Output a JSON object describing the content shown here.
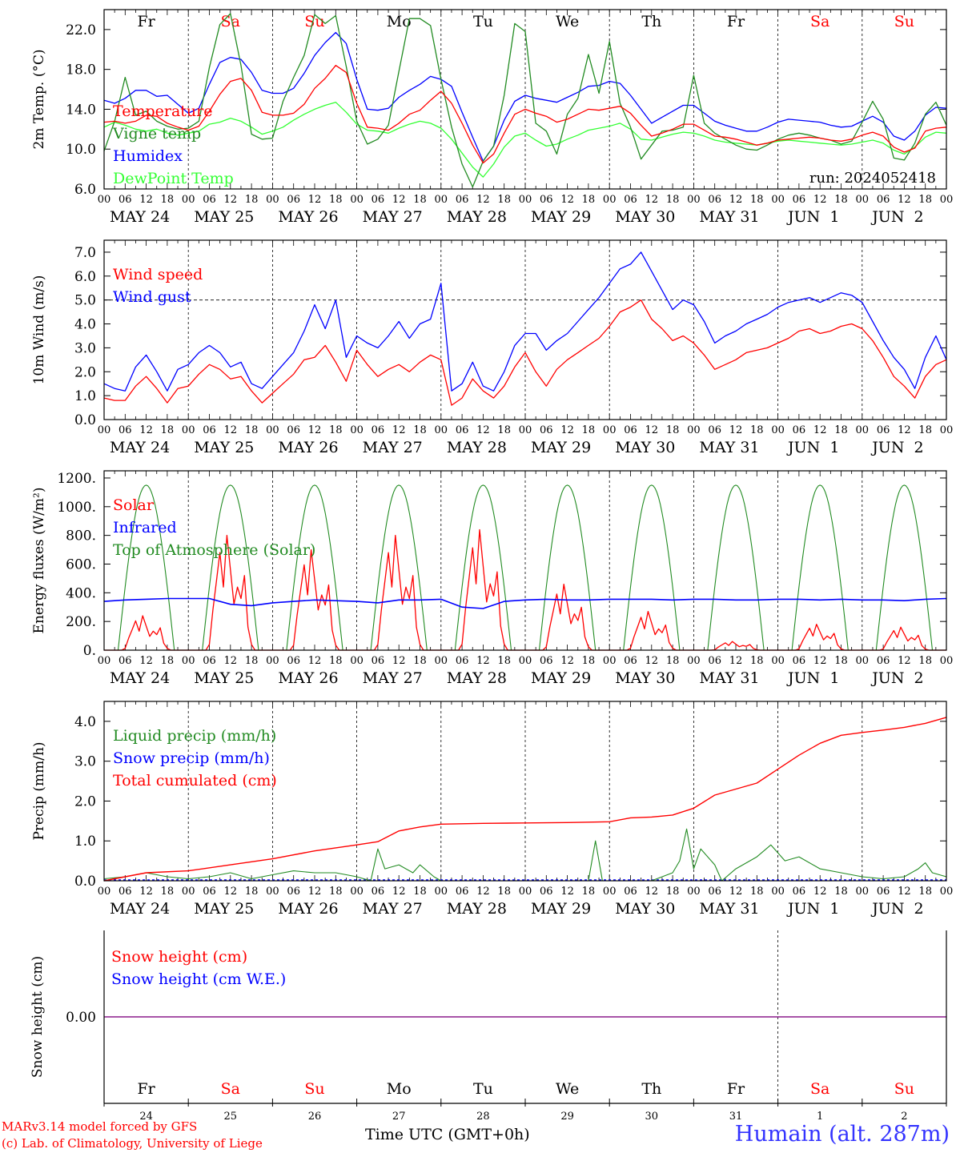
{
  "footer": {
    "credit_line1": "MARv3.14 model forced by GFS",
    "credit_line2": "(c) Lab. of Climatology, University of Liege",
    "time_label": "Time UTC (GMT+0h)",
    "station": "Humain (alt. 287m)"
  },
  "weekdays": [
    {
      "label": "Fr",
      "color": "#000000"
    },
    {
      "label": "Sa",
      "color": "#ff0000"
    },
    {
      "label": "Su",
      "color": "#ff0000"
    },
    {
      "label": "Mo",
      "color": "#000000"
    },
    {
      "label": "Tu",
      "color": "#000000"
    },
    {
      "label": "We",
      "color": "#000000"
    },
    {
      "label": "Th",
      "color": "#000000"
    },
    {
      "label": "Fr",
      "color": "#000000"
    },
    {
      "label": "Sa",
      "color": "#ff0000"
    },
    {
      "label": "Su",
      "color": "#ff0000"
    }
  ],
  "dates": [
    "MAY 24",
    "MAY 25",
    "MAY 26",
    "MAY 27",
    "MAY 28",
    "MAY 29",
    "MAY 30",
    "MAY 31",
    "JUN  1",
    "JUN  2"
  ],
  "day_numbers": [
    "24",
    "25",
    "26",
    "27",
    "28",
    "29",
    "30",
    "31",
    "1",
    "2"
  ],
  "hour_labels": [
    "00",
    "06",
    "12",
    "18"
  ],
  "chart_data": [
    {
      "id": "temp",
      "type": "line",
      "ylabel": "2m Temp. (°C)",
      "ylim": [
        6,
        24
      ],
      "yticks": [
        6.0,
        10.0,
        14.0,
        18.0,
        22.0
      ],
      "yticklabels": [
        "6.0",
        "10.0",
        "14.0",
        "18.0",
        "22.0"
      ],
      "annotation": "run: 2024052418",
      "x_hours": [
        0,
        3,
        6,
        9,
        12,
        15,
        18,
        21,
        24,
        27,
        30,
        33,
        36,
        39,
        42,
        45,
        48,
        51,
        54,
        57,
        60,
        63,
        66,
        69,
        72,
        75,
        78,
        81,
        84,
        87,
        90,
        93,
        96,
        99,
        102,
        105,
        108,
        111,
        114,
        117,
        120,
        123,
        126,
        129,
        132,
        135,
        138,
        141,
        144,
        147,
        150,
        153,
        156,
        159,
        162,
        165,
        168,
        171,
        174,
        177,
        180,
        183,
        186,
        189,
        192,
        195,
        198,
        201,
        204,
        207,
        210,
        213,
        216,
        219,
        222,
        225,
        228,
        231,
        234,
        237,
        240
      ],
      "series": [
        {
          "name": "Temperature",
          "color": "#ff0000",
          "values": [
            12.7,
            12.8,
            12.6,
            12.8,
            13.4,
            13.3,
            12.6,
            12.2,
            11.9,
            12.3,
            13.8,
            15.5,
            16.8,
            17.1,
            15.9,
            13.7,
            13.4,
            13.4,
            13.6,
            14.5,
            16.1,
            17.1,
            18.4,
            17.7,
            14.6,
            12.2,
            12.1,
            11.9,
            12.6,
            13.5,
            13.9,
            14.9,
            15.8,
            14.6,
            12.6,
            10.4,
            8.6,
            9.5,
            11.6,
            13.5,
            14.0,
            13.6,
            13.3,
            12.7,
            13.0,
            13.5,
            14.0,
            13.9,
            14.1,
            14.3,
            13.6,
            12.4,
            11.3,
            11.6,
            12.0,
            12.5,
            12.5,
            11.9,
            11.3,
            11.2,
            11.0,
            10.7,
            10.4,
            10.6,
            10.9,
            11.0,
            11.1,
            11.2,
            11.1,
            10.9,
            10.8,
            11.0,
            11.4,
            11.7,
            11.3,
            10.2,
            9.7,
            10.1,
            11.8,
            12.1,
            12.2
          ]
        },
        {
          "name": "Vigne temp",
          "color": "#228b22",
          "values": [
            9.8,
            12.8,
            17.2,
            13.4,
            13.8,
            12.8,
            12.3,
            12.0,
            12.1,
            12.8,
            18.2,
            22.5,
            23.6,
            18.4,
            11.5,
            11.0,
            11.1,
            14.8,
            17.2,
            19.4,
            23.5,
            22.6,
            23.4,
            18.3,
            12.8,
            10.5,
            11.0,
            12.4,
            17.8,
            23.1,
            23.1,
            22.4,
            17.0,
            12.2,
            8.5,
            6.2,
            8.8,
            10.3,
            15.4,
            22.6,
            21.8,
            12.6,
            11.8,
            9.5,
            13.5,
            15.1,
            19.5,
            15.6,
            20.8,
            14.6,
            12.2,
            9.0,
            10.4,
            11.8,
            11.9,
            12.2,
            17.4,
            12.6,
            11.6,
            11.0,
            10.4,
            10.0,
            9.9,
            10.4,
            11.0,
            11.4,
            11.6,
            11.4,
            11.1,
            10.9,
            10.5,
            10.8,
            12.7,
            14.8,
            13.0,
            9.1,
            8.9,
            10.6,
            13.5,
            14.7,
            12.4
          ]
        },
        {
          "name": "Humidex",
          "color": "#0000ff",
          "values": [
            14.9,
            14.6,
            15.1,
            15.9,
            15.9,
            15.3,
            15.4,
            14.5,
            13.6,
            14.1,
            16.5,
            18.7,
            19.2,
            19.0,
            17.7,
            15.9,
            15.6,
            15.6,
            16.1,
            17.6,
            19.4,
            20.7,
            21.7,
            20.6,
            17.0,
            14.0,
            13.9,
            14.1,
            15.2,
            15.9,
            16.5,
            17.3,
            17.0,
            16.3,
            13.7,
            11.2,
            8.8,
            10.3,
            12.9,
            14.8,
            15.4,
            15.1,
            14.9,
            14.7,
            15.2,
            15.7,
            16.3,
            16.4,
            16.8,
            16.6,
            15.4,
            14.0,
            12.6,
            13.2,
            13.8,
            14.4,
            14.4,
            13.6,
            12.8,
            12.4,
            12.1,
            11.8,
            11.8,
            12.2,
            12.7,
            13.0,
            12.9,
            12.8,
            12.7,
            12.4,
            12.2,
            12.3,
            12.8,
            13.3,
            12.7,
            11.3,
            10.9,
            11.8,
            13.4,
            14.2,
            14.1
          ]
        },
        {
          "name": "DewPoint Temp",
          "color": "#33ff33",
          "values": [
            12.2,
            12.7,
            12.4,
            12.0,
            11.8,
            12.0,
            11.6,
            11.4,
            11.6,
            11.8,
            12.5,
            12.7,
            13.1,
            12.8,
            12.2,
            11.5,
            11.8,
            12.2,
            12.9,
            13.5,
            14.0,
            14.4,
            14.7,
            13.7,
            12.5,
            11.9,
            11.8,
            11.6,
            12.1,
            12.5,
            12.8,
            12.6,
            12.1,
            11.0,
            9.6,
            8.2,
            7.2,
            8.5,
            10.2,
            11.3,
            11.6,
            10.9,
            10.3,
            10.5,
            11.0,
            11.4,
            11.9,
            12.1,
            12.3,
            12.6,
            12.0,
            11.0,
            10.9,
            11.2,
            11.5,
            11.7,
            11.6,
            11.3,
            10.9,
            10.7,
            10.6,
            10.5,
            10.4,
            10.6,
            10.8,
            10.9,
            10.8,
            10.7,
            10.6,
            10.5,
            10.4,
            10.5,
            10.7,
            10.9,
            10.6,
            9.9,
            9.5,
            10.2,
            11.2,
            11.7,
            11.6
          ]
        }
      ]
    },
    {
      "id": "wind",
      "type": "line",
      "ylabel": "10m Wind (m/s)",
      "ylim": [
        0,
        7.5
      ],
      "yticks": [
        0,
        1,
        2,
        3,
        4,
        5,
        6,
        7
      ],
      "yticklabels": [
        "0.0",
        "1.0",
        "2.0",
        "3.0",
        "4.0",
        "5.0",
        "6.0",
        "7.0"
      ],
      "reference_line": 5.0,
      "x_hours": [
        0,
        3,
        6,
        9,
        12,
        15,
        18,
        21,
        24,
        27,
        30,
        33,
        36,
        39,
        42,
        45,
        48,
        51,
        54,
        57,
        60,
        63,
        66,
        69,
        72,
        75,
        78,
        81,
        84,
        87,
        90,
        93,
        96,
        99,
        102,
        105,
        108,
        111,
        114,
        117,
        120,
        123,
        126,
        129,
        132,
        135,
        138,
        141,
        144,
        147,
        150,
        153,
        156,
        159,
        162,
        165,
        168,
        171,
        174,
        177,
        180,
        183,
        186,
        189,
        192,
        195,
        198,
        201,
        204,
        207,
        210,
        213,
        216,
        219,
        222,
        225,
        228,
        231,
        234,
        237,
        240
      ],
      "series": [
        {
          "name": "Wind speed",
          "color": "#ff0000",
          "values": [
            0.9,
            0.8,
            0.8,
            1.4,
            1.8,
            1.3,
            0.7,
            1.3,
            1.4,
            1.9,
            2.3,
            2.1,
            1.7,
            1.8,
            1.2,
            0.7,
            1.1,
            1.5,
            1.9,
            2.5,
            2.6,
            3.1,
            2.4,
            1.6,
            2.9,
            2.3,
            1.8,
            2.1,
            2.3,
            2.0,
            2.4,
            2.7,
            2.5,
            0.6,
            0.9,
            1.7,
            1.2,
            0.9,
            1.4,
            2.2,
            2.8,
            2.0,
            1.4,
            2.1,
            2.5,
            2.8,
            3.1,
            3.4,
            3.9,
            4.5,
            4.7,
            5.0,
            4.2,
            3.8,
            3.3,
            3.5,
            3.2,
            2.7,
            2.1,
            2.3,
            2.5,
            2.8,
            2.9,
            3.0,
            3.2,
            3.4,
            3.7,
            3.8,
            3.6,
            3.7,
            3.9,
            4.0,
            3.8,
            3.3,
            2.6,
            1.8,
            1.4,
            0.9,
            1.8,
            2.3,
            2.5
          ]
        },
        {
          "name": "Wind gust",
          "color": "#0000ff",
          "values": [
            1.5,
            1.3,
            1.2,
            2.2,
            2.7,
            2.0,
            1.2,
            2.1,
            2.3,
            2.8,
            3.1,
            2.8,
            2.2,
            2.4,
            1.5,
            1.3,
            1.8,
            2.3,
            2.8,
            3.7,
            4.8,
            3.8,
            5.0,
            2.6,
            3.5,
            3.2,
            3.0,
            3.5,
            4.1,
            3.4,
            4.0,
            4.2,
            5.7,
            1.2,
            1.5,
            2.4,
            1.4,
            1.2,
            2.0,
            3.1,
            3.6,
            3.6,
            2.9,
            3.3,
            3.6,
            4.1,
            4.6,
            5.1,
            5.7,
            6.3,
            6.5,
            7.0,
            6.2,
            5.4,
            4.6,
            5.0,
            4.8,
            4.1,
            3.2,
            3.5,
            3.7,
            4.0,
            4.2,
            4.4,
            4.7,
            4.9,
            5.0,
            5.1,
            4.9,
            5.1,
            5.3,
            5.2,
            4.9,
            4.1,
            3.3,
            2.6,
            2.1,
            1.3,
            2.6,
            3.5,
            2.5
          ]
        }
      ]
    },
    {
      "id": "energy",
      "type": "line",
      "ylabel": "Energy fluxes (W/m²)",
      "ylim": [
        0,
        1250
      ],
      "yticks": [
        0,
        200,
        400,
        600,
        800,
        1000,
        1200
      ],
      "yticklabels": [
        "0.",
        "200.",
        "400.",
        "600.",
        "800.",
        "1000.",
        "1200."
      ],
      "toa": {
        "name": "Top of Atmosphere (Solar)",
        "color": "#228b22",
        "peak": 1150,
        "sunrise_hour": 4,
        "sunset_hour": 20
      },
      "solar": {
        "name": "Solar",
        "color": "#ff0000",
        "daily_peaks": [
          240,
          800,
          700,
          800,
          840,
          460,
          270,
          60,
          180,
          160
        ]
      },
      "infrared": {
        "name": "Infrared",
        "color": "#0000ff",
        "x_hours": [
          0,
          6,
          12,
          18,
          24,
          30,
          36,
          42,
          48,
          54,
          60,
          66,
          72,
          78,
          84,
          90,
          96,
          102,
          108,
          114,
          120,
          126,
          132,
          138,
          144,
          150,
          156,
          162,
          168,
          174,
          180,
          186,
          192,
          198,
          204,
          210,
          216,
          222,
          228,
          234,
          240
        ],
        "values": [
          340,
          350,
          355,
          360,
          360,
          360,
          320,
          310,
          330,
          340,
          350,
          345,
          340,
          330,
          350,
          350,
          355,
          300,
          290,
          340,
          350,
          355,
          350,
          350,
          355,
          355,
          355,
          350,
          355,
          355,
          350,
          350,
          355,
          355,
          350,
          355,
          350,
          350,
          345,
          355,
          360
        ]
      }
    },
    {
      "id": "precip",
      "type": "line",
      "ylabel": "Precip (mm/h)",
      "ylim": [
        0,
        4.5
      ],
      "yticks": [
        0,
        1,
        2,
        3,
        4
      ],
      "yticklabels": [
        "0.0",
        "1.0",
        "2.0",
        "3.0",
        "4.0"
      ],
      "cumulated": {
        "name": "Total cumulated (cm)",
        "color": "#ff0000",
        "x_hours": [
          0,
          12,
          24,
          36,
          48,
          60,
          72,
          78,
          84,
          90,
          96,
          108,
          120,
          132,
          144,
          150,
          156,
          162,
          168,
          174,
          180,
          186,
          192,
          198,
          204,
          210,
          216,
          222,
          228,
          234,
          240
        ],
        "values": [
          0.0,
          0.2,
          0.25,
          0.4,
          0.55,
          0.75,
          0.9,
          0.98,
          1.25,
          1.35,
          1.42,
          1.44,
          1.45,
          1.46,
          1.48,
          1.58,
          1.6,
          1.65,
          1.82,
          2.15,
          2.3,
          2.45,
          2.8,
          3.15,
          3.45,
          3.65,
          3.72,
          3.78,
          3.85,
          3.95,
          4.1
        ]
      },
      "liquid": {
        "name": "Liquid precip (mm/h)",
        "color": "#228b22",
        "x_hours": [
          0,
          6,
          12,
          18,
          24,
          30,
          36,
          42,
          48,
          54,
          60,
          66,
          72,
          76,
          78,
          80,
          84,
          88,
          90,
          94,
          96,
          100,
          108,
          120,
          132,
          138,
          140,
          142,
          144,
          150,
          156,
          162,
          164,
          166,
          168,
          170,
          174,
          176,
          180,
          186,
          190,
          194,
          198,
          204,
          210,
          216,
          222,
          228,
          232,
          234,
          236,
          240
        ],
        "values": [
          0.05,
          0.1,
          0.2,
          0.1,
          0.05,
          0.1,
          0.2,
          0.05,
          0.15,
          0.25,
          0.2,
          0.2,
          0.1,
          0.0,
          0.8,
          0.3,
          0.4,
          0.2,
          0.4,
          0.1,
          0.0,
          0.0,
          0.0,
          0.0,
          0.0,
          0.0,
          1.0,
          0.0,
          0.0,
          0.0,
          0.0,
          0.2,
          0.5,
          1.3,
          0.3,
          0.8,
          0.4,
          0.0,
          0.3,
          0.6,
          0.9,
          0.5,
          0.6,
          0.3,
          0.2,
          0.1,
          0.05,
          0.1,
          0.3,
          0.45,
          0.2,
          0.1
        ]
      },
      "snow": {
        "name": "Snow precip (mm/h)",
        "color": "#0000ff"
      }
    },
    {
      "id": "snow",
      "type": "line",
      "ylabel": "Snow height (cm)",
      "yticks": [
        0
      ],
      "yticklabels": [
        "0.00"
      ],
      "series": [
        {
          "name": "Snow height (cm)",
          "color": "#ff0000",
          "values": [
            0,
            0
          ]
        },
        {
          "name": "Snow height (cm W.E.)",
          "color": "#0000ff",
          "values": [
            0,
            0
          ]
        }
      ]
    }
  ]
}
